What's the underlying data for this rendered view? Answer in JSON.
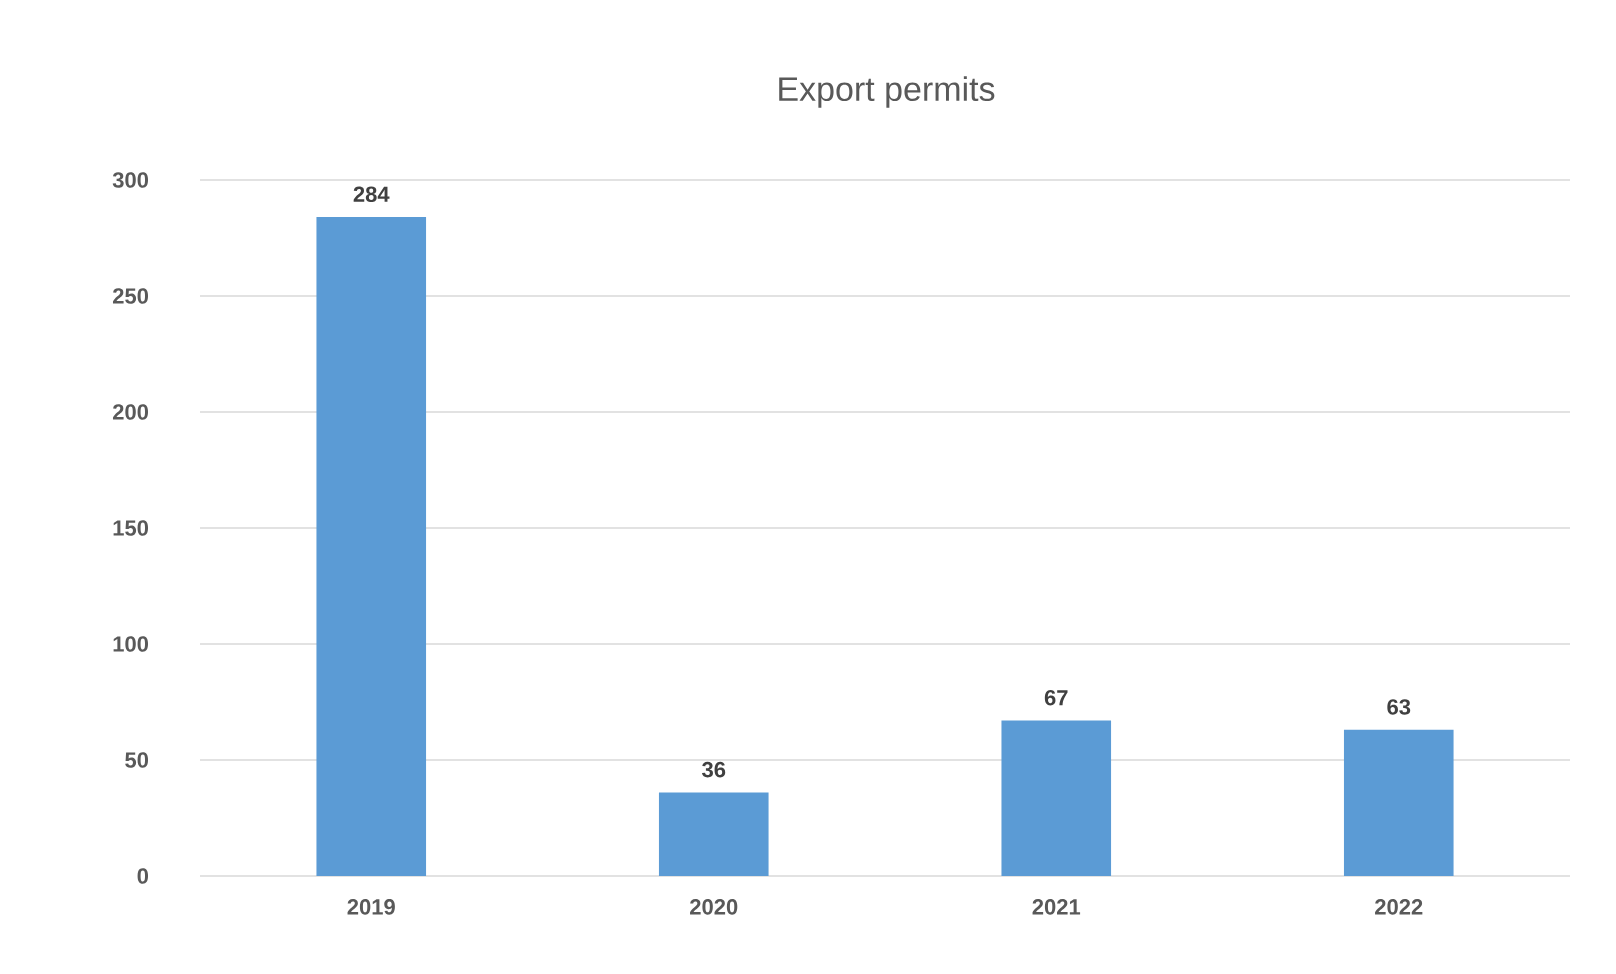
{
  "chart_data": {
    "type": "bar",
    "title": "Export permits",
    "categories": [
      "2019",
      "2020",
      "2021",
      "2022"
    ],
    "values": [
      284,
      36,
      67,
      63
    ],
    "color": "#5b9bd5",
    "ylim": [
      0,
      300
    ],
    "yticks": [
      0,
      50,
      100,
      150,
      200,
      250,
      300
    ],
    "grid": "y",
    "data_labels": true
  }
}
